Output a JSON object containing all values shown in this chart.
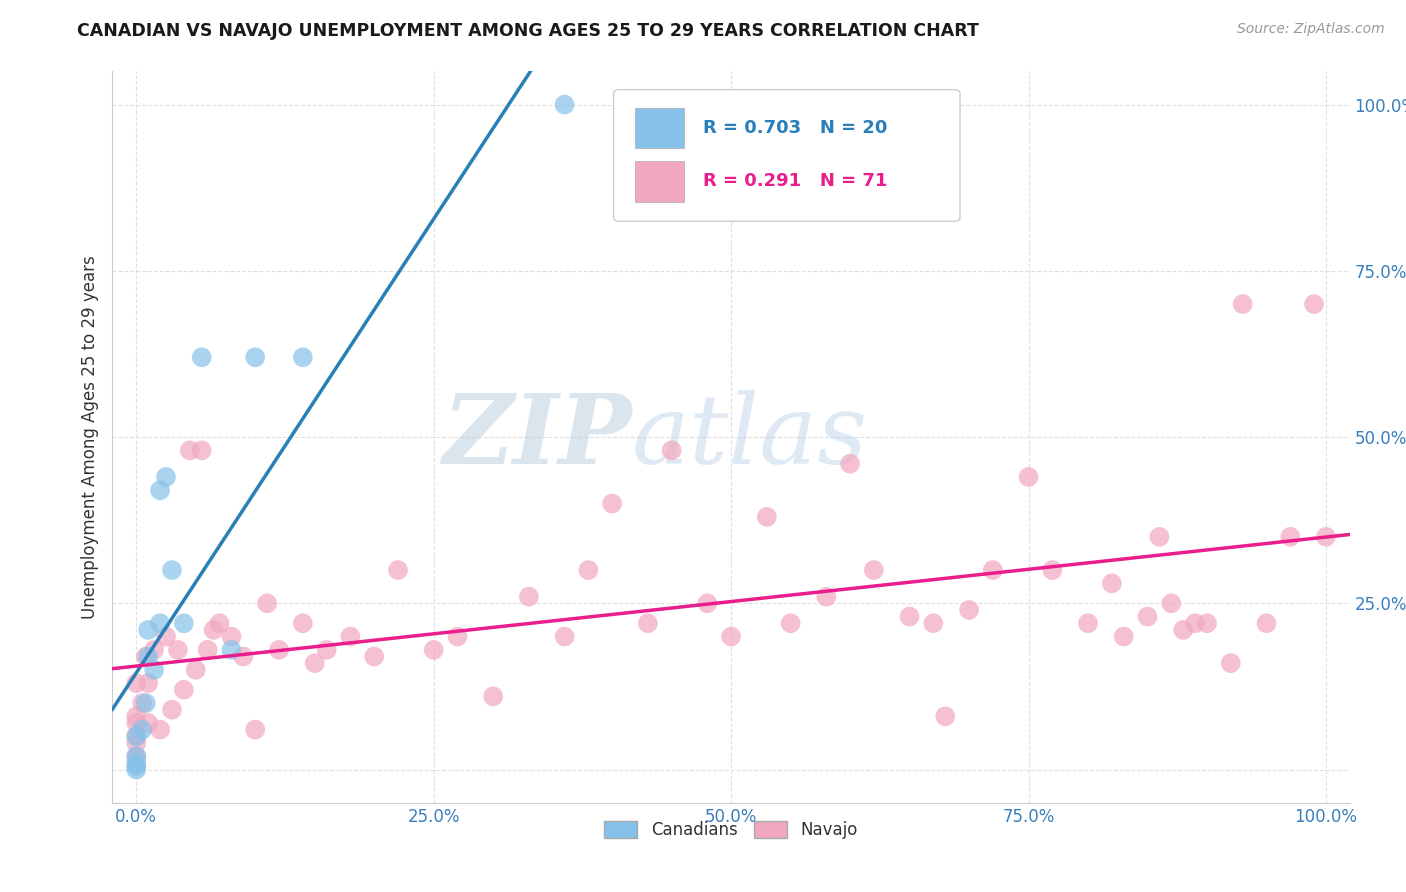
{
  "title": "CANADIAN VS NAVAJO UNEMPLOYMENT AMONG AGES 25 TO 29 YEARS CORRELATION CHART",
  "source": "Source: ZipAtlas.com",
  "ylabel": "Unemployment Among Ages 25 to 29 years",
  "xlim": [
    -0.02,
    1.02
  ],
  "ylim": [
    -0.05,
    1.05
  ],
  "xticks": [
    0.0,
    0.25,
    0.5,
    0.75,
    1.0
  ],
  "yticks": [
    0.0,
    0.25,
    0.5,
    0.75,
    1.0
  ],
  "xticklabels": [
    "0.0%",
    "25.0%",
    "50.0%",
    "75.0%",
    "100.0%"
  ],
  "yticklabels_right": [
    "",
    "25.0%",
    "50.0%",
    "75.0%",
    "100.0%"
  ],
  "canadian_color": "#85c1e9",
  "navajo_color": "#f1a7c0",
  "canadian_line_color": "#2980b9",
  "navajo_line_color": "#e91e8c",
  "legend_R_canadian": "R = 0.703",
  "legend_N_canadian": "N = 20",
  "legend_R_navajo": "R = 0.291",
  "legend_N_navajo": "N = 71",
  "watermark_zip": "ZIP",
  "watermark_atlas": "atlas",
  "watermark_color_zip": "#c5d8f0",
  "watermark_color_atlas": "#c8d8f0",
  "background_color": "#ffffff",
  "grid_color": "#e0e0e0",
  "tick_label_color": "#3a7ebf",
  "canadian_x": [
    0.0,
    0.0,
    0.0,
    0.0,
    0.0,
    0.005,
    0.008,
    0.01,
    0.01,
    0.015,
    0.02,
    0.02,
    0.025,
    0.03,
    0.04,
    0.055,
    0.08,
    0.1,
    0.14,
    0.36
  ],
  "canadian_y": [
    0.0,
    0.005,
    0.01,
    0.02,
    0.05,
    0.06,
    0.1,
    0.17,
    0.21,
    0.15,
    0.22,
    0.42,
    0.44,
    0.3,
    0.22,
    0.62,
    0.18,
    0.62,
    0.62,
    1.0
  ],
  "navajo_x": [
    0.0,
    0.0,
    0.0,
    0.0,
    0.0,
    0.0,
    0.005,
    0.008,
    0.01,
    0.01,
    0.015,
    0.02,
    0.025,
    0.03,
    0.035,
    0.04,
    0.045,
    0.05,
    0.055,
    0.06,
    0.065,
    0.07,
    0.08,
    0.09,
    0.1,
    0.11,
    0.12,
    0.14,
    0.15,
    0.16,
    0.18,
    0.2,
    0.22,
    0.25,
    0.27,
    0.3,
    0.33,
    0.36,
    0.38,
    0.4,
    0.43,
    0.45,
    0.48,
    0.5,
    0.53,
    0.55,
    0.58,
    0.6,
    0.62,
    0.65,
    0.67,
    0.68,
    0.7,
    0.72,
    0.75,
    0.77,
    0.8,
    0.82,
    0.83,
    0.85,
    0.86,
    0.87,
    0.88,
    0.89,
    0.9,
    0.92,
    0.93,
    0.95,
    0.97,
    0.99,
    1.0
  ],
  "navajo_y": [
    0.02,
    0.04,
    0.05,
    0.07,
    0.08,
    0.13,
    0.1,
    0.17,
    0.07,
    0.13,
    0.18,
    0.06,
    0.2,
    0.09,
    0.18,
    0.12,
    0.48,
    0.15,
    0.48,
    0.18,
    0.21,
    0.22,
    0.2,
    0.17,
    0.06,
    0.25,
    0.18,
    0.22,
    0.16,
    0.18,
    0.2,
    0.17,
    0.3,
    0.18,
    0.2,
    0.11,
    0.26,
    0.2,
    0.3,
    0.4,
    0.22,
    0.48,
    0.25,
    0.2,
    0.38,
    0.22,
    0.26,
    0.46,
    0.3,
    0.23,
    0.22,
    0.08,
    0.24,
    0.3,
    0.44,
    0.3,
    0.22,
    0.28,
    0.2,
    0.23,
    0.35,
    0.25,
    0.21,
    0.22,
    0.22,
    0.16,
    0.7,
    0.22,
    0.35,
    0.7,
    0.35
  ]
}
